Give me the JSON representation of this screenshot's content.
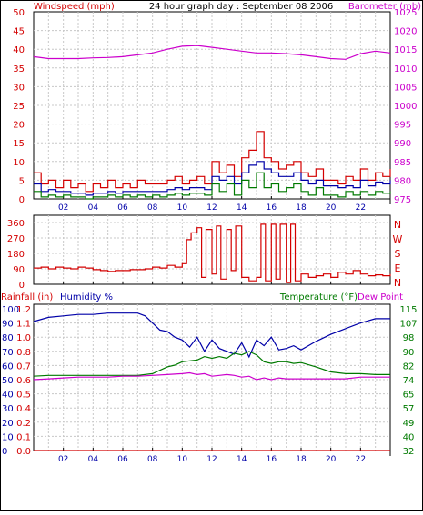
{
  "colors": {
    "red": "#d40000",
    "magenta": "#cc00cc",
    "blue": "#0000a8",
    "green": "#007a00",
    "grid": "#c8c8c8",
    "frame": "#000000"
  },
  "chart_data": [
    {
      "type": "line",
      "title": "24 hour graph day : September 08 2006",
      "ylabel_left": "Windspeed (mph)",
      "ylabel_right": "Barometer (mb)",
      "xlim": [
        0,
        24
      ],
      "x_ticks": [
        "02",
        "04",
        "06",
        "08",
        "10",
        "12",
        "14",
        "16",
        "18",
        "20",
        "22"
      ],
      "y_left": {
        "range": [
          0,
          50
        ],
        "ticks": [
          0,
          5,
          10,
          15,
          20,
          25,
          30,
          35,
          40,
          45,
          50
        ]
      },
      "y_right": {
        "range": [
          975,
          1025
        ],
        "ticks": [
          975,
          980,
          985,
          990,
          995,
          1000,
          1005,
          1010,
          1015,
          1020,
          1025
        ]
      },
      "grid": true,
      "series": [
        {
          "axis": "right",
          "color": "magenta",
          "x": [
            0,
            1,
            2,
            3,
            4,
            5,
            6,
            7,
            8,
            9,
            10,
            11,
            12,
            13,
            14,
            15,
            16,
            17,
            18,
            19,
            20,
            21,
            22,
            23,
            24
          ],
          "values": [
            1013,
            1012.5,
            1012.5,
            1012.5,
            1012.7,
            1012.8,
            1013,
            1013.5,
            1014,
            1015,
            1015.8,
            1016,
            1015.5,
            1015,
            1014.5,
            1014,
            1014,
            1013.8,
            1013.5,
            1013,
            1012.5,
            1012.3,
            1013.8,
            1014.5,
            1014
          ]
        },
        {
          "axis": "left",
          "color": "red",
          "x": [
            0,
            0.5,
            1,
            1.5,
            2,
            2.5,
            3,
            3.5,
            4,
            4.5,
            5,
            5.5,
            6,
            6.5,
            7,
            7.5,
            8,
            8.5,
            9,
            9.5,
            10,
            10.5,
            11,
            11.5,
            12,
            12.5,
            13,
            13.5,
            14,
            14.5,
            15,
            15.5,
            16,
            16.5,
            17,
            17.5,
            18,
            18.5,
            19,
            19.5,
            20,
            20.5,
            21,
            21.5,
            22,
            22.5,
            23,
            23.5,
            24
          ],
          "values": [
            7,
            4,
            5,
            3,
            5,
            3,
            4,
            2,
            4,
            3,
            5,
            3,
            4,
            3,
            5,
            4,
            4,
            4,
            5,
            6,
            4,
            5,
            6,
            4,
            10,
            7,
            9,
            6,
            11,
            13,
            18,
            11,
            10,
            8,
            9,
            10,
            7,
            6,
            8,
            5,
            5,
            4,
            6,
            5,
            8,
            5,
            7,
            6,
            8
          ]
        },
        {
          "axis": "left",
          "color": "blue",
          "x": [
            0,
            0.5,
            1,
            1.5,
            2,
            2.5,
            3,
            3.5,
            4,
            4.5,
            5,
            5.5,
            6,
            6.5,
            7,
            7.5,
            8,
            8.5,
            9,
            9.5,
            10,
            10.5,
            11,
            11.5,
            12,
            12.5,
            13,
            13.5,
            14,
            14.5,
            15,
            15.5,
            16,
            16.5,
            17,
            17.5,
            18,
            18.5,
            19,
            19.5,
            20,
            20.5,
            21,
            21.5,
            22,
            22.5,
            23,
            23.5,
            24
          ],
          "values": [
            4,
            2,
            2.5,
            2,
            2,
            1.5,
            1.5,
            1,
            1.5,
            1.5,
            2,
            1.5,
            2,
            2,
            2,
            2,
            2,
            2,
            2.5,
            3,
            2.5,
            3,
            3,
            2.5,
            6,
            5,
            6,
            4,
            7,
            9,
            10,
            8,
            7,
            6,
            6,
            7,
            5,
            4,
            5,
            3.5,
            3.5,
            3,
            3.5,
            3,
            5,
            3.5,
            4.5,
            4,
            5
          ]
        },
        {
          "axis": "left",
          "color": "green",
          "x": [
            0,
            0.5,
            1,
            1.5,
            2,
            2.5,
            3,
            3.5,
            4,
            4.5,
            5,
            5.5,
            6,
            6.5,
            7,
            7.5,
            8,
            8.5,
            9,
            9.5,
            10,
            10.5,
            11,
            11.5,
            12,
            12.5,
            13,
            13.5,
            14,
            14.5,
            15,
            15.5,
            16,
            16.5,
            17,
            17.5,
            18,
            18.5,
            19,
            19.5,
            20,
            20.5,
            21,
            21.5,
            22,
            22.5,
            23,
            23.5,
            24
          ],
          "values": [
            2,
            0.5,
            1,
            0.5,
            1,
            0.5,
            0.5,
            0,
            0.5,
            0.5,
            1,
            0.5,
            1,
            0.5,
            1,
            0.5,
            1,
            0.5,
            1,
            1.5,
            1,
            1.5,
            1.5,
            1,
            4,
            2,
            4,
            1,
            5,
            3,
            7,
            3,
            4,
            2,
            3,
            4,
            2,
            1,
            3,
            1,
            1,
            0.5,
            2,
            1,
            2,
            1,
            2,
            1.5,
            2
          ]
        }
      ]
    },
    {
      "type": "line",
      "ylabel_right": "N W S E N",
      "xlim": [
        0,
        24
      ],
      "y_left": {
        "range": [
          0,
          360
        ],
        "ticks": [
          0,
          90,
          180,
          270,
          360
        ]
      },
      "y_right": {
        "labels": [
          "N",
          "W",
          "S",
          "E",
          "N"
        ]
      },
      "grid": true,
      "series": [
        {
          "axis": "left",
          "color": "red",
          "x": [
            0,
            0.5,
            1,
            1.5,
            2,
            2.5,
            3,
            3.5,
            4,
            4.5,
            5,
            5.5,
            6,
            6.5,
            7,
            7.5,
            8,
            8.5,
            9,
            9.5,
            10,
            10.3,
            10.6,
            11,
            11.3,
            11.6,
            12,
            12.3,
            12.6,
            13,
            13.3,
            13.6,
            14,
            14.5,
            15,
            15.3,
            15.6,
            16,
            16.3,
            16.6,
            17,
            17.3,
            17.6,
            18,
            18.5,
            19,
            19.5,
            20,
            20.5,
            21,
            21.5,
            22,
            22.5,
            23,
            23.5,
            24
          ],
          "values": [
            95,
            100,
            90,
            100,
            95,
            90,
            100,
            95,
            85,
            80,
            75,
            80,
            80,
            85,
            85,
            90,
            100,
            95,
            110,
            100,
            120,
            260,
            300,
            330,
            40,
            320,
            60,
            340,
            30,
            320,
            80,
            340,
            40,
            20,
            40,
            350,
            20,
            350,
            30,
            350,
            10,
            350,
            20,
            60,
            40,
            50,
            60,
            40,
            70,
            60,
            80,
            60,
            50,
            55,
            50,
            60
          ]
        }
      ]
    },
    {
      "type": "line",
      "ylabel_left_rain": "Rainfall (in)",
      "ylabel_left_humidity": "Humidity %",
      "ylabel_right": "Temperature (°F)",
      "ylabel_right2": "Dew Point",
      "xlim": [
        0,
        24
      ],
      "x_ticks": [
        "02",
        "04",
        "06",
        "08",
        "10",
        "12",
        "14",
        "16",
        "18",
        "20",
        "22"
      ],
      "y_humidity": {
        "range": [
          0,
          100
        ],
        "ticks": [
          0,
          10,
          20,
          30,
          40,
          50,
          60,
          70,
          80,
          90,
          100
        ]
      },
      "y_rain": {
        "range": [
          0,
          1.2
        ],
        "ticks": [
          "0.0",
          "0.1",
          "0.2",
          "0.4",
          "0.5",
          "0.6",
          "0.7",
          "0.8",
          "1.0",
          "1.1",
          "1.2"
        ]
      },
      "y_temp": {
        "range": [
          32,
          115
        ],
        "ticks": [
          32,
          40,
          49,
          57,
          65,
          74,
          82,
          90,
          98,
          107,
          115
        ]
      },
      "grid": true,
      "series": [
        {
          "name": "Humidity %",
          "axis": "humidity",
          "color": "blue",
          "x": [
            0,
            1,
            2,
            3,
            4,
            5,
            6,
            7,
            7.5,
            8,
            8.5,
            9,
            9.5,
            10,
            10.5,
            11,
            11.5,
            12,
            12.5,
            13,
            13.5,
            14,
            14.5,
            15,
            15.5,
            16,
            16.5,
            17,
            17.5,
            18,
            19,
            20,
            21,
            22,
            23,
            24
          ],
          "values": [
            91,
            94,
            95,
            96,
            96,
            97,
            97,
            97,
            95,
            90,
            85,
            84,
            80,
            78,
            73,
            80,
            70,
            78,
            72,
            70,
            68,
            76,
            66,
            78,
            74,
            80,
            71,
            72,
            74,
            71,
            77,
            82,
            86,
            90,
            93,
            93
          ]
        },
        {
          "name": "Temperature (°F)",
          "axis": "temp",
          "color": "green",
          "x": [
            0,
            1,
            2,
            3,
            4,
            5,
            6,
            7,
            8,
            8.5,
            9,
            9.5,
            10,
            10.5,
            11,
            11.5,
            12,
            12.5,
            13,
            13.5,
            14,
            14.5,
            15,
            15.5,
            16,
            16.5,
            17,
            17.5,
            18,
            19,
            20,
            21,
            22,
            23,
            24
          ],
          "values": [
            75.5,
            76,
            76,
            76,
            76,
            76,
            76,
            76,
            77,
            79,
            81,
            82,
            84,
            84.5,
            85,
            87,
            86,
            87,
            86,
            89,
            88,
            90,
            88,
            84,
            83,
            84,
            84,
            83,
            83.5,
            81,
            78,
            77,
            77,
            76.5,
            76.5
          ]
        },
        {
          "name": "Dew Point",
          "axis": "temp",
          "color": "magenta",
          "x": [
            0,
            1,
            2,
            3,
            4,
            5,
            6,
            7,
            8,
            9,
            10,
            10.5,
            11,
            11.5,
            12,
            12.5,
            13,
            13.5,
            14,
            14.5,
            15,
            15.5,
            16,
            16.5,
            17,
            18,
            19,
            20,
            21,
            22,
            23,
            24
          ],
          "values": [
            73.5,
            74,
            74.5,
            75,
            75,
            75,
            75.5,
            75.5,
            76,
            76.5,
            77,
            77.5,
            76.5,
            77,
            75.5,
            76,
            76.5,
            76,
            75,
            75.5,
            73.5,
            74.5,
            73.5,
            74.5,
            74,
            74,
            74,
            74,
            74,
            75,
            75,
            75
          ]
        },
        {
          "name": "Rainfall (in)",
          "axis": "rain",
          "color": "red",
          "x": [
            0,
            24
          ],
          "values": [
            0,
            0
          ]
        }
      ]
    }
  ]
}
